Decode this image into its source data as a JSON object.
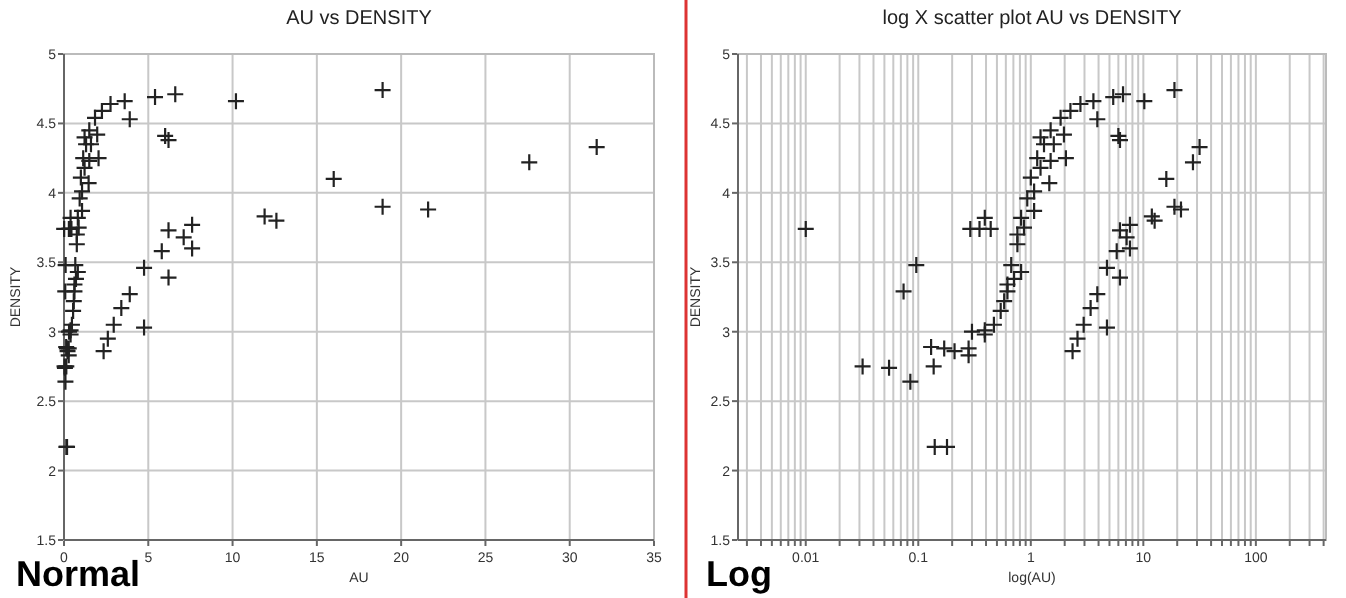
{
  "chart_data": [
    {
      "type": "scatter",
      "title": "AU vs DENSITY",
      "xlabel": "AU",
      "ylabel": "DENSITY",
      "xlim": [
        0,
        35
      ],
      "xticks": [
        0,
        5,
        10,
        15,
        20,
        25,
        30,
        35
      ],
      "ylim": [
        1.5,
        5
      ],
      "yticks": [
        1.5,
        2,
        2.5,
        3,
        3.5,
        4,
        4.5,
        5
      ],
      "grid": true,
      "marker": "cross",
      "annotations": [
        "Normal"
      ],
      "series": [
        {
          "color": "#222222",
          "x": [
            0.01,
            0.032,
            0.055,
            0.085,
            0.074,
            0.096,
            0.14,
            0.18,
            0.137,
            0.13,
            0.17,
            0.21,
            0.28,
            0.28,
            0.3,
            0.39,
            0.39,
            0.29,
            0.35,
            0.39,
            0.44,
            0.47,
            0.62,
            0.67,
            0.76,
            0.82,
            0.93,
            1.0,
            1.14,
            1.31,
            1.5,
            1.84,
            2.25,
            2.76,
            3.6,
            5.4,
            6.6,
            10.2,
            18.9,
            6.0,
            6.2,
            3.9,
            2.05,
            1.46,
            27.6,
            31.6,
            16,
            18.9,
            21.6,
            11.9,
            12.6,
            2.35,
            2.6,
            2.95,
            3.4,
            3.9,
            4.75,
            5.8,
            7.1,
            7.6,
            6.2,
            4.75,
            6.2,
            7.6,
            0.54,
            0.58,
            0.71,
            0.82,
            0.62,
            0.76,
            0.87,
            1.07,
            1.07,
            1.22,
            1.5,
            1.6,
            1.97,
            1.22
          ],
          "values": [
            3.74,
            2.75,
            2.74,
            2.64,
            3.29,
            3.48,
            2.17,
            2.17,
            2.75,
            2.89,
            2.88,
            2.86,
            2.88,
            2.83,
            3.0,
            2.98,
            3.01,
            3.74,
            3.74,
            3.82,
            3.74,
            3.05,
            3.29,
            3.48,
            3.63,
            3.82,
            3.96,
            4.11,
            4.25,
            4.35,
            4.45,
            4.54,
            4.59,
            4.64,
            4.66,
            4.69,
            4.71,
            4.66,
            4.74,
            4.41,
            4.38,
            4.53,
            4.25,
            4.07,
            4.22,
            4.33,
            4.1,
            3.9,
            3.88,
            3.83,
            3.8,
            2.86,
            2.95,
            3.05,
            3.17,
            3.27,
            3.46,
            3.58,
            3.68,
            3.77,
            3.39,
            3.03,
            3.73,
            3.6,
            3.15,
            3.22,
            3.38,
            3.43,
            3.34,
            3.7,
            3.75,
            3.87,
            4.01,
            4.18,
            4.23,
            4.35,
            4.42,
            4.4
          ]
        }
      ]
    },
    {
      "type": "scatter",
      "title": "log X scatter plot AU vs DENSITY",
      "xlabel": "log(AU)",
      "ylabel": "DENSITY",
      "log": "x",
      "xlim": [
        0.0025,
        420
      ],
      "xticks": [
        {
          "value": 0.003,
          "label": null
        },
        {
          "value": 0.004,
          "label": null
        },
        {
          "value": 0.005,
          "label": null
        },
        {
          "value": 0.006,
          "label": null
        },
        {
          "value": 0.007,
          "label": null
        },
        {
          "value": 0.008,
          "label": null
        },
        {
          "value": 0.009,
          "label": null
        },
        0.01,
        {
          "value": 0.02,
          "label": null
        },
        {
          "value": 0.03,
          "label": null
        },
        {
          "value": 0.04,
          "label": null
        },
        {
          "value": 0.05,
          "label": null
        },
        {
          "value": 0.06,
          "label": null
        },
        {
          "value": 0.07,
          "label": null
        },
        {
          "value": 0.08,
          "label": null
        },
        {
          "value": 0.09,
          "label": null
        },
        0.1,
        {
          "value": 0.2,
          "label": null
        },
        {
          "value": 0.3,
          "label": null
        },
        {
          "value": 0.4,
          "label": null
        },
        {
          "value": 0.5,
          "label": null
        },
        {
          "value": 0.6,
          "label": null
        },
        {
          "value": 0.7,
          "label": null
        },
        {
          "value": 0.8,
          "label": null
        },
        {
          "value": 0.9,
          "label": null
        },
        1,
        {
          "value": 2,
          "label": null
        },
        {
          "value": 3,
          "label": null
        },
        {
          "value": 4,
          "label": null
        },
        {
          "value": 5,
          "label": null
        },
        {
          "value": 6,
          "label": null
        },
        {
          "value": 7,
          "label": null
        },
        {
          "value": 8,
          "label": null
        },
        {
          "value": 9,
          "label": null
        },
        10,
        {
          "value": 20,
          "label": null
        },
        {
          "value": 30,
          "label": null
        },
        {
          "value": 40,
          "label": null
        },
        {
          "value": 50,
          "label": null
        },
        {
          "value": 60,
          "label": null
        },
        {
          "value": 70,
          "label": null
        },
        {
          "value": 80,
          "label": null
        },
        {
          "value": 90,
          "label": null
        },
        100,
        {
          "value": 200,
          "label": null
        },
        {
          "value": 300,
          "label": null
        },
        {
          "value": 400,
          "label": null
        }
      ],
      "ylim": [
        1.5,
        5
      ],
      "yticks": [
        1.5,
        2,
        2.5,
        3,
        3.5,
        4,
        4.5,
        5
      ],
      "grid": true,
      "marker": "cross",
      "annotations": [
        "Log"
      ],
      "series": [
        {
          "color": "#222222",
          "x": [
            0.01,
            0.032,
            0.055,
            0.085,
            0.074,
            0.096,
            0.14,
            0.18,
            0.137,
            0.13,
            0.17,
            0.21,
            0.28,
            0.28,
            0.3,
            0.39,
            0.39,
            0.29,
            0.35,
            0.39,
            0.44,
            0.47,
            0.62,
            0.67,
            0.76,
            0.82,
            0.93,
            1.0,
            1.14,
            1.31,
            1.5,
            1.84,
            2.25,
            2.76,
            3.6,
            5.4,
            6.6,
            10.2,
            18.9,
            6.0,
            6.2,
            3.9,
            2.05,
            1.46,
            27.6,
            31.6,
            16,
            18.9,
            21.6,
            11.9,
            12.6,
            2.35,
            2.6,
            2.95,
            3.4,
            3.9,
            4.75,
            5.8,
            7.1,
            7.6,
            6.2,
            4.75,
            6.2,
            7.6,
            0.54,
            0.58,
            0.71,
            0.82,
            0.62,
            0.76,
            0.87,
            1.07,
            1.07,
            1.22,
            1.5,
            1.6,
            1.97,
            1.22
          ],
          "values": [
            3.74,
            2.75,
            2.74,
            2.64,
            3.29,
            3.48,
            2.17,
            2.17,
            2.75,
            2.89,
            2.88,
            2.86,
            2.88,
            2.83,
            3.0,
            2.98,
            3.01,
            3.74,
            3.74,
            3.82,
            3.74,
            3.05,
            3.29,
            3.48,
            3.63,
            3.82,
            3.96,
            4.11,
            4.25,
            4.35,
            4.45,
            4.54,
            4.59,
            4.64,
            4.66,
            4.69,
            4.71,
            4.66,
            4.74,
            4.41,
            4.38,
            4.53,
            4.25,
            4.07,
            4.22,
            4.33,
            4.1,
            3.9,
            3.88,
            3.83,
            3.8,
            2.86,
            2.95,
            3.05,
            3.17,
            3.27,
            3.46,
            3.58,
            3.68,
            3.77,
            3.39,
            3.03,
            3.73,
            3.6,
            3.15,
            3.22,
            3.38,
            3.43,
            3.34,
            3.7,
            3.75,
            3.87,
            4.01,
            4.18,
            4.23,
            4.35,
            4.42,
            4.4
          ]
        }
      ]
    }
  ]
}
